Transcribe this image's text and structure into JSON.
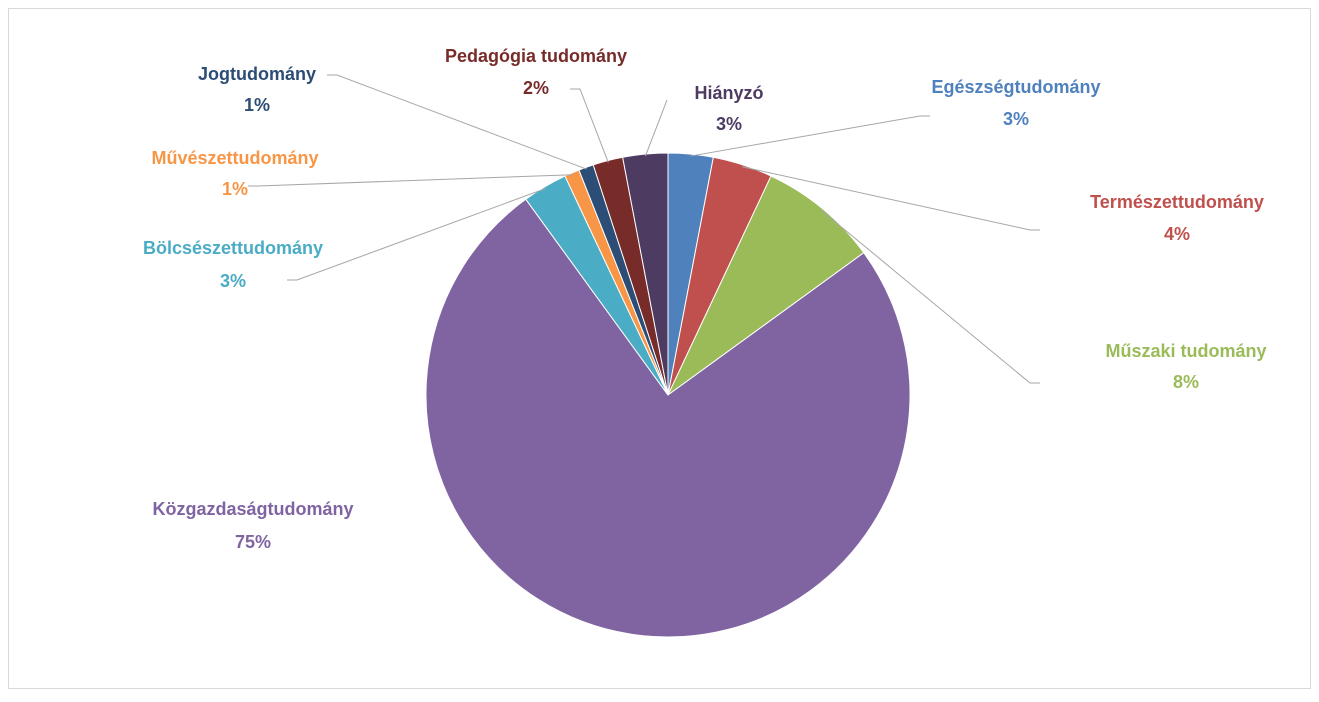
{
  "chart_data": {
    "type": "pie",
    "categories": [
      "Egészségtudomány",
      "Természettudomány",
      "Műszaki tudomány",
      "Közgazdaságtudomány",
      "Bölcsészettudomány",
      "Művészettudomány",
      "Jogtudomány",
      "Pedagógia tudomány",
      "Hiányzó"
    ],
    "values": [
      3,
      4,
      8,
      75,
      3,
      1,
      1,
      2,
      3
    ],
    "value_labels": [
      "3%",
      "4%",
      "8%",
      "75%",
      "3%",
      "1%",
      "1%",
      "2%",
      "3%"
    ],
    "colors": [
      "#4f81bd",
      "#c0504d",
      "#9bbb59",
      "#8064a2",
      "#4bacc6",
      "#f79646",
      "#2c4d75",
      "#772c2a",
      "#4d3b62"
    ]
  }
}
